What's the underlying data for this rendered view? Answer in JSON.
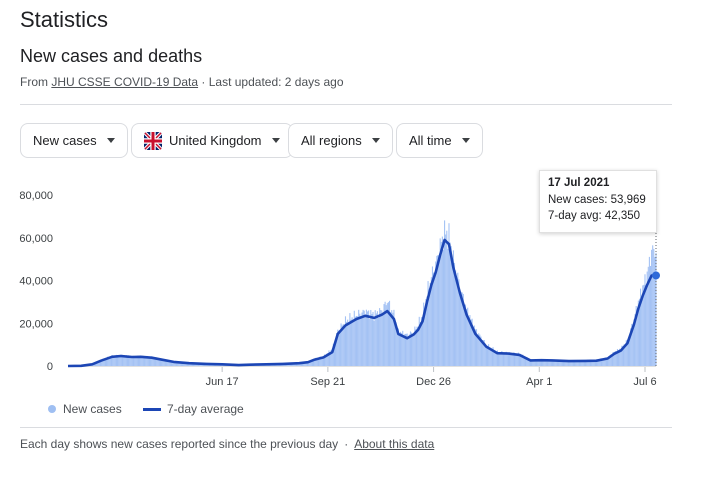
{
  "page": {
    "title": "Statistics",
    "subtitle": "New cases and deaths",
    "source_prefix": "From",
    "source_link": "JHU CSSE COVID-19 Data",
    "source_suffix": "· Last updated: 2 days ago"
  },
  "filters": [
    {
      "label": "New cases"
    },
    {
      "label": "United Kingdom",
      "icon": "uk-flag-icon"
    },
    {
      "label": "All regions"
    },
    {
      "label": "All time"
    }
  ],
  "colors": {
    "bar": "#a4c2f4",
    "line": "#1c46b5",
    "dot": "#2f6ad9",
    "axis_text": "#3c4043",
    "grid": "#e0e0e0"
  },
  "tooltip": {
    "date": "17 Jul 2021",
    "new_cases_label": "New cases: 53,969",
    "avg_label": "7-day avg: 42,350"
  },
  "legend": {
    "bars": "New cases",
    "line": "7-day average"
  },
  "footer": {
    "note": "Each day shows new cases reported since the previous day",
    "sep": "·",
    "link": "About this data"
  },
  "chart_data": {
    "type": "area",
    "title": "",
    "xlabel": "",
    "ylabel": "",
    "ylim": [
      0,
      80000
    ],
    "yticks": [
      "80,000",
      "60,000",
      "40,000",
      "20,000",
      "0"
    ],
    "ytick_values": [
      80000,
      60000,
      40000,
      20000,
      0
    ],
    "xticks": [
      "Jun 17",
      "Sep 21",
      "Dec 26",
      "Apr 1",
      "Jul 6"
    ],
    "xtick_days": [
      140,
      236,
      332,
      428,
      524
    ],
    "x_start": "Jan 29 2020",
    "legend_position": "bottom-left",
    "grid": false,
    "series": [
      {
        "name": "7-day average",
        "x": [
          0,
          12,
          22,
          30,
          40,
          48,
          58,
          66,
          76,
          86,
          96,
          110,
          126,
          140,
          155,
          165,
          180,
          195,
          210,
          218,
          224,
          232,
          240,
          245,
          252,
          262,
          270,
          278,
          285,
          290,
          296,
          300,
          308,
          314,
          318,
          322,
          326,
          330,
          334,
          338,
          342,
          346,
          350,
          356,
          362,
          370,
          380,
          390,
          400,
          410,
          420,
          430,
          440,
          455,
          470,
          480,
          490,
          496,
          502,
          508,
          514,
          518,
          522,
          526,
          530,
          534
        ],
        "y": [
          0,
          100,
          800,
          2500,
          4300,
          4700,
          4200,
          4300,
          3900,
          2900,
          1900,
          1300,
          1000,
          800,
          400,
          600,
          800,
          1000,
          1300,
          1800,
          3000,
          4000,
          6500,
          15000,
          19000,
          22000,
          23500,
          22500,
          24000,
          25700,
          22000,
          15000,
          13000,
          14800,
          17000,
          21000,
          30000,
          38000,
          44000,
          52000,
          59000,
          57000,
          46000,
          34000,
          24000,
          15000,
          9000,
          6000,
          5800,
          5200,
          2600,
          2700,
          2600,
          2300,
          2400,
          2500,
          3500,
          5700,
          7200,
          10600,
          19500,
          27000,
          33000,
          38000,
          42350,
          42350
        ]
      },
      {
        "name": "New cases",
        "x": [
          0,
          12,
          22,
          30,
          40,
          48,
          58,
          66,
          76,
          86,
          96,
          110,
          126,
          140,
          155,
          165,
          180,
          195,
          210,
          218,
          224,
          232,
          240,
          245,
          252,
          262,
          270,
          278,
          285,
          290,
          296,
          300,
          308,
          314,
          318,
          322,
          326,
          330,
          334,
          338,
          342,
          346,
          350,
          356,
          362,
          370,
          380,
          390,
          400,
          410,
          420,
          430,
          440,
          455,
          470,
          480,
          490,
          496,
          502,
          508,
          514,
          518,
          522,
          526,
          530,
          534
        ],
        "y": [
          0,
          150,
          1000,
          2800,
          4700,
          5100,
          4500,
          4600,
          4100,
          3100,
          2000,
          1400,
          1100,
          900,
          500,
          700,
          900,
          1100,
          1400,
          2000,
          3400,
          4400,
          8000,
          16500,
          21000,
          24000,
          25500,
          24000,
          26000,
          30500,
          24000,
          16000,
          14500,
          16000,
          19500,
          24000,
          34000,
          42000,
          47500,
          56000,
          62500,
          61000,
          50000,
          37000,
          26500,
          17000,
          10000,
          6500,
          6200,
          5600,
          2900,
          3000,
          2800,
          2500,
          2600,
          2800,
          4000,
          6500,
          8100,
          12000,
          22000,
          30000,
          36500,
          43000,
          53969,
          53969
        ]
      }
    ]
  }
}
